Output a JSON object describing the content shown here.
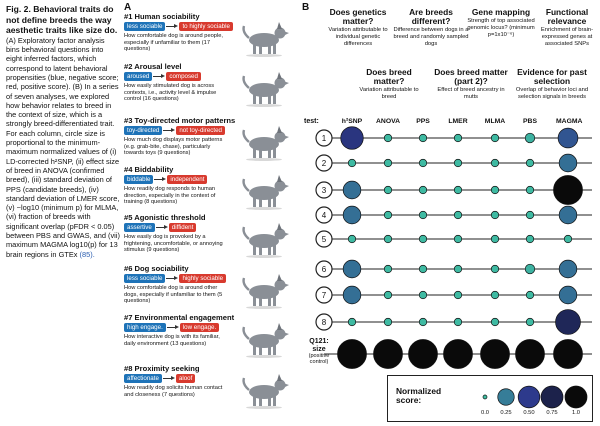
{
  "caption": {
    "title": "Fig. 2. Behavioral traits do not define breeds the way aesthetic traits like size do.",
    "body": "(A) Exploratory factor analysis bins behavioral questions into eight inferred factors, which correspond to latent behavioral propensities (blue, negative score; red, positive score). (B) In a series of seven analyses, we explored how behavior relates to breed in the context of size, which is a strongly breed-differentiated trait. For each column, circle size is proportional to the minimum-maximum normalized values of (i) LD-corrected h²SNP, (ii) effect size of breed in ANOVA (confirmed breed), (iii) standard deviation of PPS (candidate breeds), (iv) standard deviation of LMER score, (v) −log10 (minimum p) for MLMA, (vi) fraction of breeds with significant overlap (pFDR < 0.05) between PBS and GWAS, and (vii) maximum MAGMA log10(p) for 13 brain regions in GTEx",
    "ref": "(85)."
  },
  "panelA": {
    "label": "A",
    "factors": [
      {
        "title": "#1 Human sociability",
        "neg": "less sociable",
        "pos": "to highly sociable",
        "desc": "How comfortable dog is around people, especially if unfamiliar to them (17 questions)"
      },
      {
        "title": "#2 Arousal level",
        "neg": "aroused",
        "pos": "composed",
        "desc": "How easily stimulated dog is across contexts, i.e., activity level & impulse control (16 questions)"
      },
      {
        "title": "#3 Toy-directed motor patterns",
        "neg": "toy-directed",
        "pos": "not toy-directed",
        "desc": "How much dog displays motor patterns (e.g. grab-bite, chase), particularly towards toys (9 questions)"
      },
      {
        "title": "#4 Biddability",
        "neg": "biddable",
        "pos": "independent",
        "desc": "How readily dog responds to human direction, especially in the context of training (8 questions)"
      },
      {
        "title": "#5 Agonistic threshold",
        "neg": "assertive",
        "pos": "diffident",
        "desc": "How easily dog is provoked by a frightening, uncomfortable, or annoying stimulus (9 questions)"
      },
      {
        "title": "#6 Dog sociability",
        "neg": "less sociable",
        "pos": "highly sociable",
        "desc": "How comfortable dog is around other dogs, especially if unfamiliar to them (5 questions)"
      },
      {
        "title": "#7 Environmental engagement",
        "neg": "high engage.",
        "pos": "low engage.",
        "desc": "How interactive dog is with its familiar, daily environment (13 questions)"
      },
      {
        "title": "#8 Proximity seeking",
        "neg": "affectionate",
        "pos": "aloof",
        "desc": "How readily dog solicits human contact and closeness (7 questions)"
      }
    ]
  },
  "panelB": {
    "label": "B",
    "headers_top": [
      {
        "q": "Does genetics matter?",
        "s": "Variation attributable to individual genetic differences"
      },
      {
        "q": "Are breeds different?",
        "s": "Difference between dogs in a breed and randomly sampled dogs"
      },
      {
        "q": "Gene mapping",
        "s": "Strength of top associated genomic locus? (minimum p=1x10⁻⁶)"
      },
      {
        "q": "Functional relevance",
        "s": "Enrichment of brain-expressed genes at associated SNPs"
      }
    ],
    "headers_bottom": [
      {
        "q": "Does breed matter?",
        "s": "Variation attributable to breed"
      },
      {
        "q": "Does breed matter (part 2)?",
        "s": "Effect of breed ancestry in mutts"
      },
      {
        "q": "Evidence for past selection",
        "s": "Overlap of behavior loci and selection signals in breeds"
      }
    ],
    "test_label": "test:",
    "columns": [
      "h²SNP",
      "ANOVA",
      "PPS",
      "LMER",
      "MLMA",
      "PBS",
      "MAGMA"
    ],
    "rows": [
      {
        "id": "1",
        "scores": [
          0.55,
          0.02,
          0.02,
          0.02,
          0.02,
          0.05,
          0.4
        ]
      },
      {
        "id": "2",
        "scores": [
          0.02,
          0.02,
          0.02,
          0.02,
          0.02,
          0.02,
          0.3
        ]
      },
      {
        "id": "3",
        "scores": [
          0.3,
          0.02,
          0.02,
          0.02,
          0.02,
          0.02,
          1.0
        ]
      },
      {
        "id": "4",
        "scores": [
          0.3,
          0.02,
          0.02,
          0.02,
          0.02,
          0.02,
          0.3
        ]
      },
      {
        "id": "5",
        "scores": [
          0.02,
          0.02,
          0.02,
          0.02,
          0.02,
          0.02,
          0.02
        ]
      },
      {
        "id": "6",
        "scores": [
          0.3,
          0.02,
          0.02,
          0.02,
          0.02,
          0.05,
          0.3
        ]
      },
      {
        "id": "7",
        "scores": [
          0.3,
          0.02,
          0.02,
          0.02,
          0.02,
          0.02,
          0.3
        ]
      },
      {
        "id": "8",
        "scores": [
          0.02,
          0.02,
          0.02,
          0.02,
          0.02,
          0.02,
          0.7
        ]
      }
    ],
    "q121": {
      "title": "Q121: size",
      "sub": "(positive control)",
      "scores": [
        1.0,
        1.0,
        1.0,
        1.0,
        1.0,
        1.0,
        1.0
      ]
    }
  },
  "legend": {
    "title": "Normalized score:",
    "values": [
      0.0,
      0.25,
      0.5,
      0.75,
      1.0
    ],
    "tick_labels": [
      "0.0",
      "0.25",
      "0.50",
      "0.75",
      "1.0"
    ]
  },
  "colors": {
    "blue_neg": "#1e73b8",
    "red_pos": "#d83a2e",
    "low": "#3fbfa3",
    "mid": "#2d3a8c",
    "high": "#0a0a0a"
  }
}
